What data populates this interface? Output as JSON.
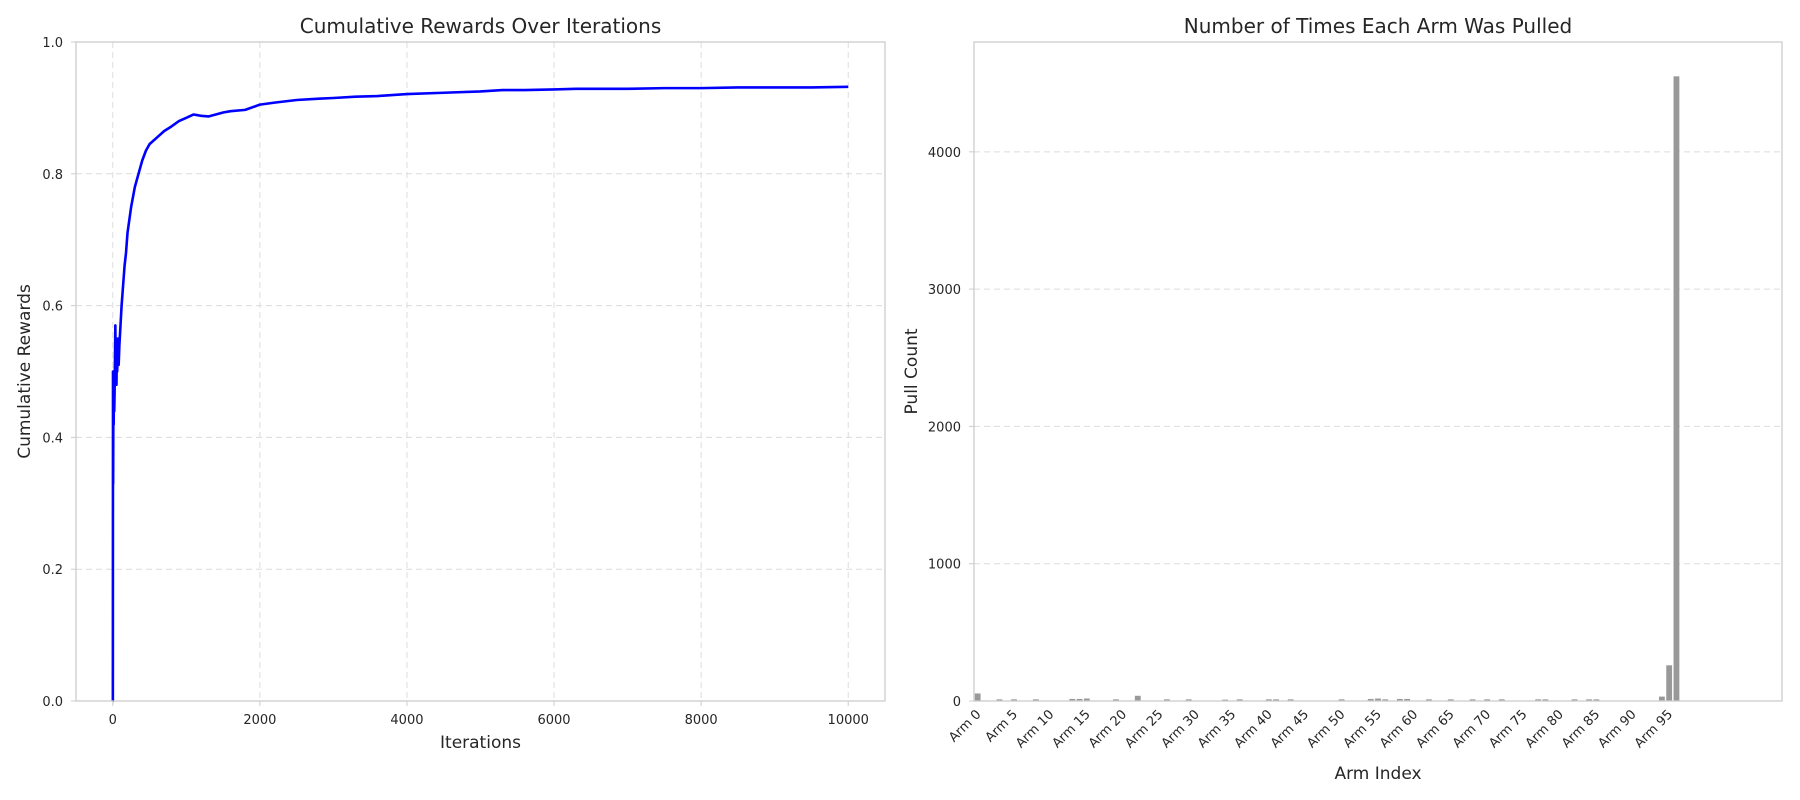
{
  "chart_data": [
    {
      "type": "line",
      "title": "Cumulative Rewards Over Iterations",
      "xlabel": "Iterations",
      "ylabel": "Cumulative Rewards",
      "xlim": [
        -500,
        10500
      ],
      "ylim": [
        0.0,
        1.0
      ],
      "xticks": [
        0,
        2000,
        4000,
        6000,
        8000,
        10000
      ],
      "yticks": [
        0.0,
        0.2,
        0.4,
        0.6,
        0.8,
        1.0
      ],
      "ytick_labels": [
        "0.0",
        "0.2",
        "0.4",
        "0.6",
        "0.8",
        "1.0"
      ],
      "grid": true,
      "series": [
        {
          "color": "#0000ff",
          "x": [
            0,
            1,
            3,
            5,
            8,
            10,
            12,
            15,
            18,
            20,
            25,
            30,
            35,
            40,
            45,
            50,
            55,
            60,
            70,
            80,
            90,
            100,
            120,
            140,
            160,
            180,
            200,
            250,
            300,
            350,
            400,
            450,
            500,
            600,
            700,
            800,
            900,
            1000,
            1100,
            1200,
            1300,
            1400,
            1500,
            1600,
            1800,
            2000,
            2200,
            2500,
            2800,
            3000,
            3300,
            3600,
            4000,
            4500,
            5000,
            5300,
            5600,
            6000,
            6300,
            6600,
            7000,
            7500,
            8000,
            8500,
            9000,
            9500,
            10000
          ],
          "y": [
            0.0,
            0.0,
            0.5,
            0.33,
            0.45,
            0.5,
            0.42,
            0.47,
            0.5,
            0.44,
            0.47,
            0.52,
            0.57,
            0.5,
            0.55,
            0.48,
            0.52,
            0.5,
            0.55,
            0.51,
            0.54,
            0.56,
            0.6,
            0.63,
            0.66,
            0.68,
            0.71,
            0.75,
            0.78,
            0.8,
            0.82,
            0.835,
            0.845,
            0.855,
            0.865,
            0.872,
            0.88,
            0.885,
            0.89,
            0.888,
            0.887,
            0.89,
            0.893,
            0.895,
            0.897,
            0.905,
            0.908,
            0.912,
            0.914,
            0.915,
            0.917,
            0.918,
            0.921,
            0.923,
            0.925,
            0.927,
            0.927,
            0.928,
            0.929,
            0.929,
            0.929,
            0.93,
            0.93,
            0.931,
            0.931,
            0.931,
            0.932
          ]
        }
      ]
    },
    {
      "type": "bar",
      "title": "Number of Times Each Arm Was Pulled",
      "xlabel": "Arm Index",
      "ylabel": "Pull Count",
      "ylim": [
        0,
        4800
      ],
      "yticks": [
        0,
        1000,
        2000,
        3000,
        4000
      ],
      "xtick_labels": [
        "Arm 0",
        "Arm 5",
        "Arm 10",
        "Arm 15",
        "Arm 20",
        "Arm 25",
        "Arm 30",
        "Arm 35",
        "Arm 40",
        "Arm 45",
        "Arm 50",
        "Arm 55",
        "Arm 60",
        "Arm 65",
        "Arm 70",
        "Arm 75",
        "Arm 80",
        "Arm 85",
        "Arm 90",
        "Arm 95"
      ],
      "xtick_step": 5,
      "grid": true,
      "bar_color": "#999999",
      "values": [
        55,
        4,
        3,
        12,
        3,
        12,
        3,
        3,
        12,
        3,
        3,
        3,
        3,
        15,
        15,
        18,
        3,
        3,
        3,
        12,
        3,
        3,
        38,
        3,
        3,
        3,
        12,
        3,
        3,
        12,
        3,
        3,
        3,
        3,
        10,
        3,
        12,
        3,
        3,
        3,
        12,
        12,
        3,
        12,
        3,
        3,
        3,
        3,
        3,
        3,
        12,
        3,
        3,
        3,
        15,
        18,
        12,
        3,
        15,
        15,
        3,
        3,
        12,
        3,
        3,
        12,
        3,
        3,
        12,
        3,
        12,
        3,
        12,
        3,
        3,
        3,
        3,
        12,
        12,
        3,
        3,
        3,
        12,
        3,
        12,
        12,
        3,
        3,
        3,
        3,
        3,
        3,
        3,
        3,
        32,
        260,
        4550,
        3,
        3,
        3,
        3,
        3,
        3,
        3,
        3,
        3,
        3,
        3,
        3,
        3,
        3
      ]
    }
  ]
}
